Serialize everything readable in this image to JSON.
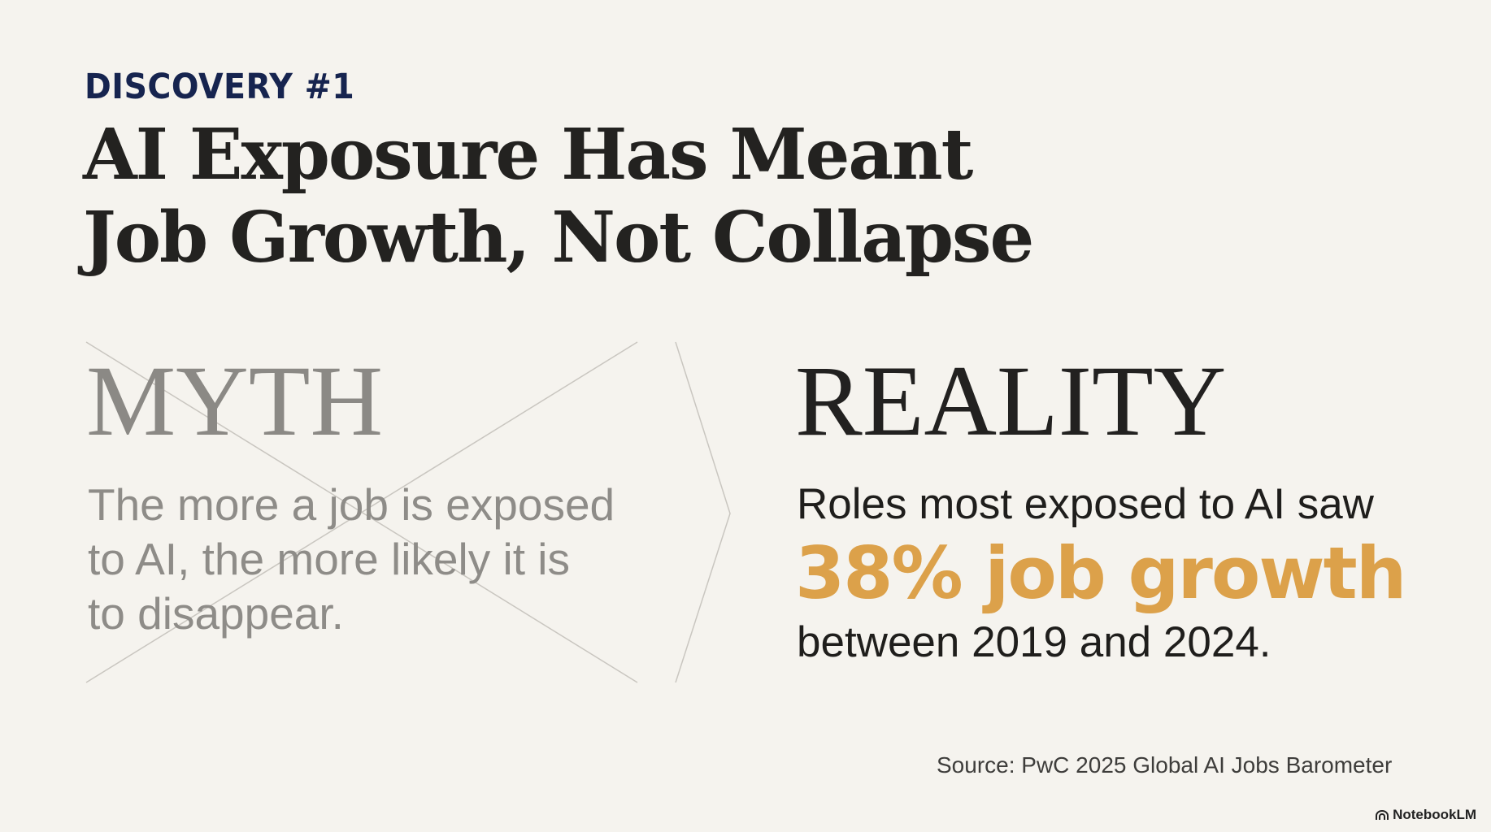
{
  "kicker": "DISCOVERY #1",
  "title": {
    "line1": "AI Exposure Has Meant",
    "line2": "Job Growth, Not Collapse"
  },
  "myth": {
    "heading": "MYTH",
    "lines": [
      "The more a job is exposed",
      "to AI, the more likely it is",
      "to disappear."
    ],
    "crossed_out": true
  },
  "reality": {
    "heading": "REALITY",
    "line1": "Roles most exposed to AI saw",
    "highlight": "38% job growth",
    "line2": "between 2019 and 2024.",
    "highlight_color": "#dca14a"
  },
  "source": "Source: PwC 2025 Global AI Jobs Barometer",
  "brand": {
    "name": "NotebookLM",
    "icon": "notebooklm-logo-icon"
  }
}
